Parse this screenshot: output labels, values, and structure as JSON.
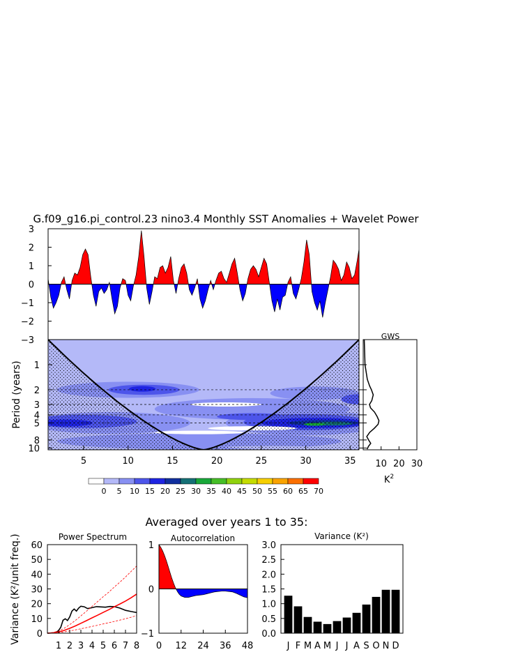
{
  "page": {
    "title": "G.f09_g16.pi_control.23 nino3.4 Monthly SST Anomalies + Wavelet Power",
    "subtitle": "Averaged over years 1 to 35:"
  },
  "chart_data": [
    {
      "type": "area",
      "role": "sst-anomaly-timeseries",
      "xlim": [
        1,
        36
      ],
      "ylim": [
        -3,
        3
      ],
      "yticks": [
        3,
        2,
        1,
        0,
        -1,
        -2,
        -3
      ],
      "ytick_labels": [
        "3",
        "2",
        "1",
        "0",
        "−1",
        "−2",
        "−3"
      ],
      "colors": {
        "positive": "#ff0000",
        "negative": "#0000ff"
      },
      "x": [
        1.0,
        1.3,
        1.6,
        1.9,
        2.2,
        2.5,
        2.8,
        3.1,
        3.4,
        3.7,
        4.0,
        4.3,
        4.6,
        4.9,
        5.2,
        5.5,
        5.8,
        6.1,
        6.4,
        6.7,
        7.0,
        7.3,
        7.6,
        7.9,
        8.2,
        8.5,
        8.8,
        9.1,
        9.4,
        9.7,
        10.0,
        10.3,
        10.6,
        10.9,
        11.2,
        11.5,
        11.8,
        12.1,
        12.4,
        12.7,
        13.0,
        13.3,
        13.6,
        13.9,
        14.2,
        14.5,
        14.8,
        15.1,
        15.4,
        15.7,
        16.0,
        16.3,
        16.6,
        16.9,
        17.2,
        17.5,
        17.8,
        18.1,
        18.4,
        18.7,
        19.0,
        19.3,
        19.6,
        19.9,
        20.2,
        20.5,
        20.8,
        21.1,
        21.4,
        21.7,
        22.0,
        22.3,
        22.6,
        22.9,
        23.2,
        23.5,
        23.8,
        24.1,
        24.4,
        24.7,
        25.0,
        25.3,
        25.6,
        25.9,
        26.2,
        26.5,
        26.8,
        27.1,
        27.4,
        27.7,
        28.0,
        28.3,
        28.6,
        28.9,
        29.2,
        29.5,
        29.8,
        30.1,
        30.4,
        30.7,
        31.0,
        31.3,
        31.6,
        31.9,
        32.2,
        32.5,
        32.8,
        33.1,
        33.4,
        33.7,
        34.0,
        34.3,
        34.6,
        34.9,
        35.2,
        35.5,
        35.8,
        36.0
      ],
      "y": [
        0.3,
        -0.7,
        -1.3,
        -1.0,
        -0.6,
        0.1,
        0.4,
        -0.3,
        -0.8,
        0.2,
        0.6,
        0.5,
        0.9,
        1.6,
        1.9,
        1.6,
        0.4,
        -0.6,
        -1.2,
        -0.4,
        -0.2,
        -0.5,
        -0.3,
        0.1,
        -0.8,
        -1.6,
        -1.2,
        -0.2,
        0.3,
        0.2,
        -0.6,
        -0.9,
        -0.1,
        0.5,
        1.5,
        2.9,
        1.5,
        -0.2,
        -1.1,
        -0.4,
        0.4,
        0.3,
        0.9,
        1.0,
        0.6,
        0.9,
        1.5,
        0.2,
        -0.5,
        0.3,
        0.9,
        1.1,
        0.6,
        -0.3,
        -0.6,
        -0.2,
        0.3,
        -0.8,
        -1.3,
        -0.9,
        -0.3,
        0.2,
        -0.3,
        0.2,
        0.6,
        0.7,
        0.3,
        0.1,
        0.6,
        1.1,
        1.4,
        0.6,
        -0.3,
        -0.9,
        -0.5,
        0.3,
        0.8,
        1.0,
        0.8,
        0.4,
        0.9,
        1.4,
        1.1,
        0.1,
        -0.9,
        -1.5,
        -0.8,
        -1.4,
        -0.7,
        -0.6,
        0.1,
        0.4,
        -0.5,
        -0.8,
        -0.3,
        0.3,
        1.2,
        2.4,
        1.6,
        -0.4,
        -1.0,
        -1.4,
        -0.9,
        -1.8,
        -1.0,
        -0.3,
        0.4,
        1.3,
        1.1,
        0.8,
        0.2,
        0.5,
        1.2,
        0.9,
        0.3,
        0.5,
        1.3,
        1.9
      ]
    },
    {
      "type": "heatmap",
      "role": "wavelet-power",
      "ylabel": "Period (years)",
      "xlim": [
        1,
        36
      ],
      "xticks": [
        5,
        10,
        15,
        20,
        25,
        30,
        35
      ],
      "yscale": "log",
      "ylim": [
        0.5,
        10.5
      ],
      "yticks": [
        1,
        2,
        3,
        4,
        5,
        8,
        10
      ],
      "dashed_periods": [
        2,
        3,
        4,
        5
      ],
      "colorbar": {
        "levels": [
          0,
          5,
          10,
          15,
          20,
          25,
          30,
          35,
          40,
          45,
          50,
          55,
          60,
          65,
          70
        ],
        "labels": [
          "0",
          "5",
          "10",
          "15",
          "20",
          "25",
          "30",
          "35",
          "40",
          "45",
          "50",
          "55",
          "60",
          "65",
          "70"
        ],
        "colors": [
          "#ffffff",
          "#b4b9f8",
          "#8890f2",
          "#4d55ea",
          "#1e24e2",
          "#102f9e",
          "#157076",
          "#19a83a",
          "#46be27",
          "#90d20e",
          "#c4dc00",
          "#f6cf00",
          "#f9a300",
          "#fb6f00",
          "#ff0000"
        ]
      },
      "cone_of_influence": {
        "period_at_edges": 0.5,
        "max_period": 10.5,
        "center_year": 18.5
      }
    },
    {
      "type": "line",
      "role": "global-wavelet-spectrum",
      "title": "GWS",
      "xlabel": "K",
      "xlabel_sup": "2",
      "xlim": [
        0,
        30
      ],
      "xticks": [
        0,
        10,
        20,
        30
      ],
      "xtick_labels": [
        "",
        "10",
        "20",
        "30"
      ],
      "period": [
        0.5,
        1.0,
        1.5,
        1.8,
        2.0,
        2.3,
        2.7,
        3.0,
        3.3,
        3.7,
        4.2,
        4.7,
        5.2,
        5.8,
        6.5,
        7.3,
        8.0,
        8.8,
        9.5,
        10.3
      ],
      "power": [
        0.6,
        1.0,
        2.3,
        3.6,
        4.6,
        5.6,
        4.8,
        3.5,
        4.1,
        6.3,
        7.8,
        8.8,
        8.3,
        6.2,
        3.6,
        2.0,
        3.0,
        4.2,
        3.0,
        2.2
      ]
    },
    {
      "type": "line",
      "role": "power-spectrum",
      "title": "Power Spectrum",
      "ylabel": "Variance (K²/unit freq.)",
      "xlim": [
        0,
        8
      ],
      "ylim": [
        0,
        60
      ],
      "xticks": [
        1,
        2,
        3,
        4,
        5,
        6,
        7,
        8
      ],
      "yticks": [
        0,
        10,
        20,
        30,
        40,
        50,
        60
      ],
      "series": [
        {
          "color": "#000000",
          "x": [
            0,
            0.5,
            0.8,
            1.0,
            1.2,
            1.4,
            1.6,
            1.8,
            2.0,
            2.2,
            2.4,
            2.6,
            2.8,
            3.0,
            3.3,
            3.6,
            4.0,
            4.4,
            4.8,
            5.2,
            5.6,
            6.0,
            6.5,
            7.0,
            7.5,
            8.0
          ],
          "y": [
            0,
            0.2,
            0.7,
            1.8,
            4.0,
            8.8,
            9.8,
            8.6,
            11.0,
            15.0,
            16.4,
            15.0,
            17.0,
            18.3,
            17.9,
            16.7,
            17.3,
            18.0,
            17.8,
            17.6,
            18.1,
            18.0,
            17.0,
            15.5,
            14.7,
            14.0
          ]
        },
        {
          "color": "#ff0000",
          "x": [
            0,
            0.5,
            1.0,
            1.5,
            2.0,
            2.5,
            3.0,
            3.5,
            4.0,
            4.5,
            5.0,
            5.5,
            6.0,
            6.5,
            7.0,
            7.5,
            8.0
          ],
          "y": [
            0,
            0.25,
            0.85,
            1.9,
            3.3,
            4.9,
            6.7,
            8.5,
            10.4,
            12.2,
            14.1,
            15.9,
            17.9,
            19.8,
            21.8,
            24.0,
            26.5
          ]
        },
        {
          "color": "#ff0000",
          "x": [
            0,
            0.5,
            1.0,
            1.5,
            2.0,
            2.5,
            3.0,
            3.5,
            4.0,
            4.5,
            5.0,
            5.5,
            6.0,
            6.5,
            7.0,
            7.5,
            8.0
          ],
          "y": [
            0,
            0.45,
            1.5,
            3.3,
            5.8,
            8.6,
            11.7,
            14.9,
            18.2,
            21.4,
            24.7,
            27.8,
            31.3,
            34.6,
            38.1,
            41.8,
            45.5
          ]
        },
        {
          "color": "#ff0000",
          "x": [
            0,
            0.5,
            1.0,
            1.5,
            2.0,
            2.5,
            3.0,
            3.5,
            4.0,
            4.5,
            5.0,
            5.5,
            6.0,
            6.5,
            7.0,
            7.5,
            8.0
          ],
          "y": [
            0,
            0.12,
            0.4,
            0.9,
            1.5,
            2.2,
            3.0,
            3.8,
            4.6,
            5.4,
            6.3,
            7.1,
            8.0,
            8.9,
            9.8,
            10.8,
            11.9
          ]
        }
      ]
    },
    {
      "type": "area",
      "role": "autocorrelation",
      "title": "Autocorrelation",
      "xlim": [
        0,
        48
      ],
      "ylim": [
        -1,
        1
      ],
      "xticks": [
        0,
        12,
        24,
        36,
        48
      ],
      "yticks": [
        -1,
        0,
        1
      ],
      "ytick_labels": [
        "−1",
        "0",
        "1"
      ],
      "colors": {
        "positive": "#ff0000",
        "negative": "#0000ff"
      },
      "x": [
        0,
        1,
        2,
        3,
        4,
        5,
        6,
        7,
        8,
        9,
        10,
        11,
        12,
        14,
        16,
        18,
        20,
        22,
        24,
        26,
        28,
        30,
        32,
        34,
        36,
        38,
        40,
        42,
        44,
        46,
        48
      ],
      "y": [
        1.0,
        0.94,
        0.86,
        0.76,
        0.64,
        0.51,
        0.37,
        0.24,
        0.12,
        0.02,
        -0.06,
        -0.12,
        -0.16,
        -0.19,
        -0.19,
        -0.17,
        -0.15,
        -0.14,
        -0.13,
        -0.11,
        -0.09,
        -0.07,
        -0.06,
        -0.05,
        -0.05,
        -0.06,
        -0.07,
        -0.1,
        -0.14,
        -0.18,
        -0.2
      ]
    },
    {
      "type": "bar",
      "role": "monthly-variance",
      "title": "Variance (K²)",
      "categories": [
        "J",
        "F",
        "M",
        "A",
        "M",
        "J",
        "J",
        "A",
        "S",
        "O",
        "N",
        "D"
      ],
      "values": [
        1.27,
        0.91,
        0.55,
        0.39,
        0.31,
        0.41,
        0.53,
        0.69,
        0.97,
        1.23,
        1.47,
        1.47
      ],
      "ylim": [
        0,
        3.0
      ],
      "yticks": [
        "0.0",
        "0.5",
        "1.0",
        "1.5",
        "2.0",
        "2.5",
        "3.0"
      ],
      "color": "#000000"
    }
  ]
}
